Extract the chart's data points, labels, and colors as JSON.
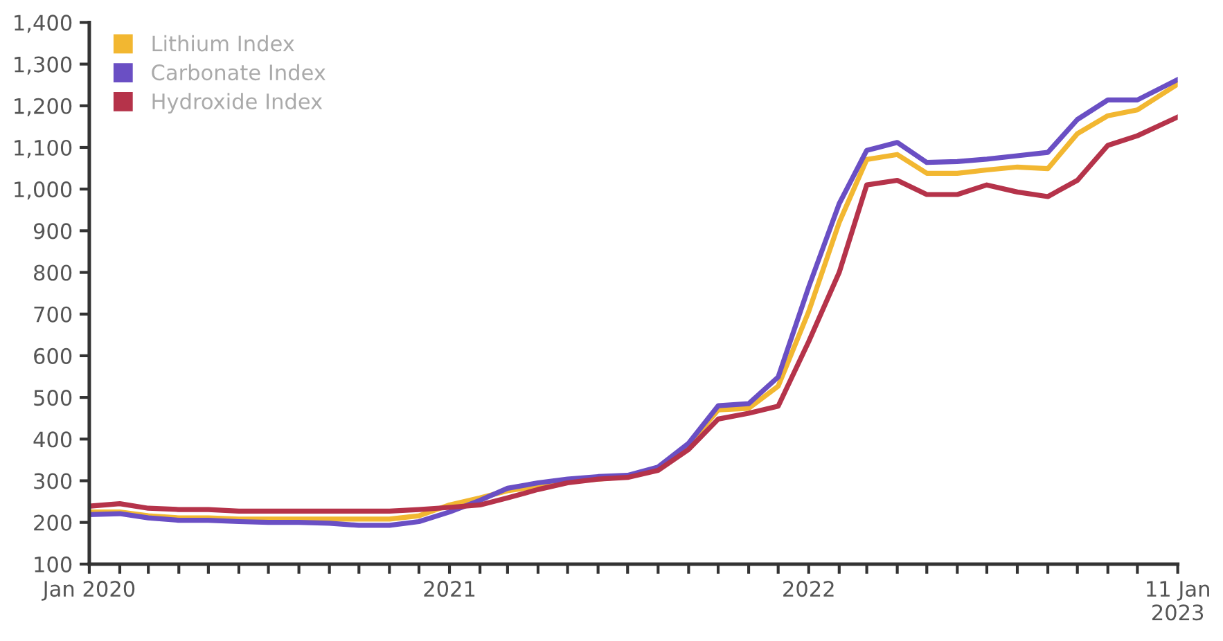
{
  "chart_data": {
    "type": "line",
    "x": [
      "2020-01",
      "2020-02",
      "2020-03",
      "2020-04",
      "2020-05",
      "2020-06",
      "2020-07",
      "2020-08",
      "2020-09",
      "2020-10",
      "2020-11",
      "2020-12",
      "2021-01",
      "2021-02",
      "2021-03",
      "2021-04",
      "2021-05",
      "2021-06",
      "2021-07",
      "2021-08",
      "2021-09",
      "2021-10",
      "2021-11",
      "2021-12",
      "2022-01",
      "2022-02",
      "2022-03",
      "2022-04",
      "2022-05",
      "2022-06",
      "2022-07",
      "2022-08",
      "2022-09",
      "2022-10",
      "2022-11",
      "2022-12",
      "2023-01-11"
    ],
    "series": [
      {
        "name": "Lithium Index",
        "color": "#f2b731",
        "values": [
          225,
          225,
          216,
          211,
          211,
          208,
          208,
          208,
          208,
          208,
          208,
          216,
          242,
          259,
          276,
          287,
          299,
          304,
          310,
          330,
          385,
          470,
          474,
          527,
          706,
          920,
          1071,
          1083,
          1038,
          1038,
          1046,
          1053,
          1049,
          1133,
          1176,
          1190,
          1252
        ]
      },
      {
        "name": "Carbonate Index",
        "color": "#6a4fc4",
        "values": [
          219,
          221,
          211,
          205,
          205,
          202,
          200,
          200,
          198,
          193,
          193,
          202,
          225,
          253,
          282,
          295,
          304,
          310,
          313,
          333,
          390,
          480,
          485,
          549,
          765,
          965,
          1093,
          1112,
          1064,
          1066,
          1072,
          1080,
          1088,
          1167,
          1214,
          1214,
          1263
        ]
      },
      {
        "name": "Hydroxide Index",
        "color": "#b5334a",
        "values": [
          239,
          245,
          234,
          231,
          231,
          227,
          227,
          227,
          227,
          227,
          227,
          231,
          236,
          242,
          259,
          279,
          295,
          304,
          308,
          325,
          375,
          448,
          462,
          479,
          634,
          800,
          1010,
          1021,
          987,
          987,
          1010,
          993,
          982,
          1021,
          1105,
          1128,
          1173
        ]
      }
    ],
    "xlim": [
      "2020-01-01",
      "2023-01-11"
    ],
    "xticks": [
      {
        "value": "2020-01-01",
        "label": "Jan 2020"
      },
      {
        "value": "2020-02-01",
        "label": null
      },
      {
        "value": "2020-03-01",
        "label": null
      },
      {
        "value": "2020-04-01",
        "label": null
      },
      {
        "value": "2020-05-01",
        "label": null
      },
      {
        "value": "2020-06-01",
        "label": null
      },
      {
        "value": "2020-07-01",
        "label": null
      },
      {
        "value": "2020-08-01",
        "label": null
      },
      {
        "value": "2020-09-01",
        "label": null
      },
      {
        "value": "2020-10-01",
        "label": null
      },
      {
        "value": "2020-11-01",
        "label": null
      },
      {
        "value": "2020-12-01",
        "label": null
      },
      {
        "value": "2021-01-01",
        "label": "2021"
      },
      {
        "value": "2021-02-01",
        "label": null
      },
      {
        "value": "2021-03-01",
        "label": null
      },
      {
        "value": "2021-04-01",
        "label": null
      },
      {
        "value": "2021-05-01",
        "label": null
      },
      {
        "value": "2021-06-01",
        "label": null
      },
      {
        "value": "2021-07-01",
        "label": null
      },
      {
        "value": "2021-08-01",
        "label": null
      },
      {
        "value": "2021-09-01",
        "label": null
      },
      {
        "value": "2021-10-01",
        "label": null
      },
      {
        "value": "2021-11-01",
        "label": null
      },
      {
        "value": "2021-12-01",
        "label": null
      },
      {
        "value": "2022-01-01",
        "label": "2022"
      },
      {
        "value": "2022-02-01",
        "label": null
      },
      {
        "value": "2022-03-01",
        "label": null
      },
      {
        "value": "2022-04-01",
        "label": null
      },
      {
        "value": "2022-05-01",
        "label": null
      },
      {
        "value": "2022-06-01",
        "label": null
      },
      {
        "value": "2022-07-01",
        "label": null
      },
      {
        "value": "2022-08-01",
        "label": null
      },
      {
        "value": "2022-09-01",
        "label": null
      },
      {
        "value": "2022-10-01",
        "label": null
      },
      {
        "value": "2022-11-01",
        "label": null
      },
      {
        "value": "2022-12-01",
        "label": null
      },
      {
        "value": "2023-01-11",
        "label": "11 Jan\n2023"
      }
    ],
    "ylim": [
      100,
      1400
    ],
    "yticks": [
      100,
      200,
      300,
      400,
      500,
      600,
      700,
      800,
      900,
      {
        "value": 1000,
        "label": "1,000"
      },
      {
        "value": 1100,
        "label": "1,100"
      },
      {
        "value": 1200,
        "label": "1,200"
      },
      {
        "value": 1300,
        "label": "1,300"
      },
      {
        "value": 1400,
        "label": "1,400"
      }
    ],
    "legend": "top left",
    "grid": false,
    "marker": "none",
    "line_style": "solid"
  }
}
